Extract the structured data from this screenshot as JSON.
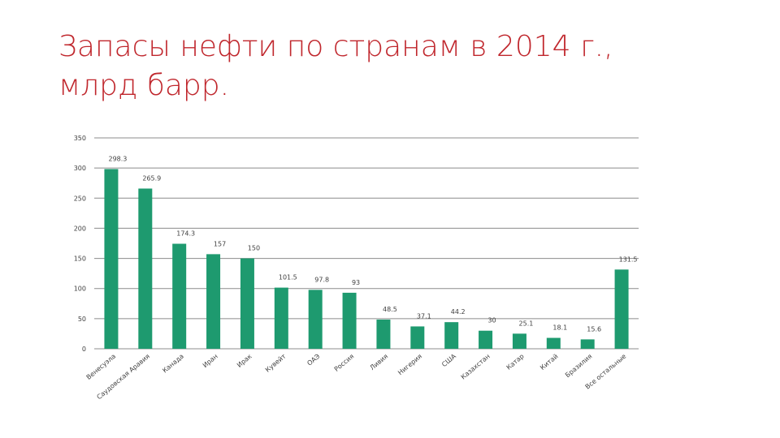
{
  "slide": {
    "title_line1": "Запасы нефти по странам в 2014  г.,",
    "title_line2": "млрд барр."
  },
  "colors": {
    "title": "#c0272d",
    "bar": "#1e9a6f",
    "grid": "#8c8c8c",
    "label": "#404040"
  },
  "chart_data": {
    "type": "bar",
    "title": "",
    "xlabel": "",
    "ylabel": "",
    "ylim": [
      0,
      350
    ],
    "yticks": [
      0,
      50,
      100,
      150,
      200,
      250,
      300,
      350
    ],
    "grid": true,
    "legend": "none",
    "categories": [
      "Венесуэла",
      "Саудовская Аравия",
      "Канада",
      "Иран",
      "Ирак",
      "Кувейт",
      "ОАЭ",
      "Россия",
      "Ливия",
      "Нигерия",
      "США",
      "Казахстан",
      "Катар",
      "Китай",
      "Бразилия",
      "Все остальные"
    ],
    "values": [
      298.3,
      265.9,
      174.3,
      157,
      150,
      101.5,
      97.8,
      93,
      48.5,
      37.1,
      44.2,
      30,
      25.1,
      18.1,
      15.6,
      131.5
    ],
    "data_labels": [
      "298.3",
      "265.9",
      "174.3",
      "157",
      "150",
      "101.5",
      "97.8",
      "93",
      "48.5",
      "37.1",
      "44.2",
      "30",
      "25.1",
      "18.1",
      "15.6",
      "131.5"
    ]
  }
}
